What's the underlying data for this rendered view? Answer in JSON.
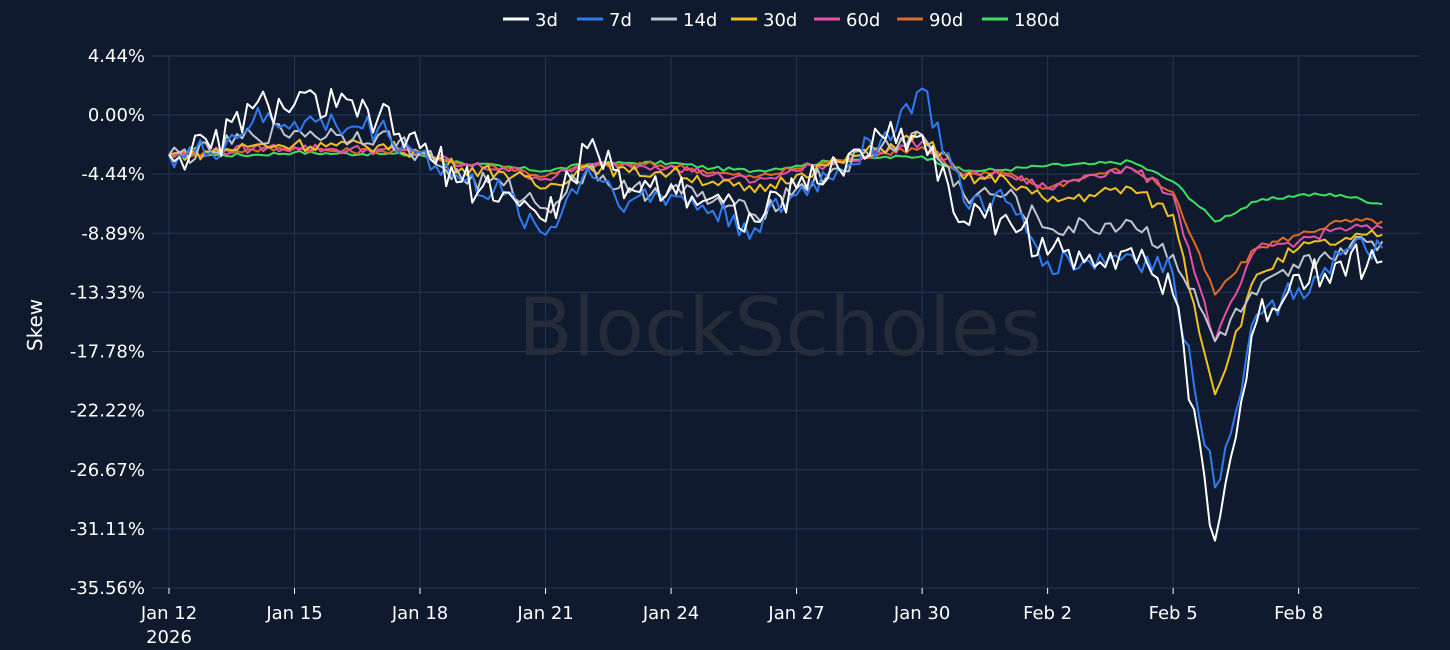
{
  "watermark": "BlockScholes",
  "chart_data": {
    "type": "line",
    "ylabel": "Skew",
    "xlabel": "",
    "legend_position": "top-center",
    "grid": true,
    "y_ticks": [
      "4.44%",
      "0.00%",
      "-4.44%",
      "-8.89%",
      "-13.33%",
      "-17.78%",
      "-22.22%",
      "-26.67%",
      "-31.11%",
      "-35.56%"
    ],
    "y_tick_values": [
      4.44,
      0.0,
      -4.44,
      -8.89,
      -13.33,
      -17.78,
      -22.22,
      -26.67,
      -31.11,
      -35.56
    ],
    "ylim": [
      -35.56,
      4.44
    ],
    "x_ticks": [
      "Jan 12",
      "Jan 15",
      "Jan 18",
      "Jan 21",
      "Jan 24",
      "Jan 27",
      "Jan 30",
      "Feb 2",
      "Feb 5",
      "Feb 8"
    ],
    "x_tick_values": [
      "2026-01-12",
      "2026-01-15",
      "2026-01-18",
      "2026-01-21",
      "2026-01-24",
      "2026-01-27",
      "2026-01-30",
      "2026-02-02",
      "2026-02-05",
      "2026-02-08"
    ],
    "x_year_label": "2026",
    "xlim": [
      "2026-01-12",
      "2026-02-10"
    ],
    "x": [
      "2026-01-12",
      "2026-01-13",
      "2026-01-14",
      "2026-01-15",
      "2026-01-16",
      "2026-01-17",
      "2026-01-18",
      "2026-01-19",
      "2026-01-20",
      "2026-01-21",
      "2026-01-22",
      "2026-01-23",
      "2026-01-24",
      "2026-01-25",
      "2026-01-26",
      "2026-01-27",
      "2026-01-28",
      "2026-01-29",
      "2026-01-30",
      "2026-01-31",
      "2026-02-01",
      "2026-02-02",
      "2026-02-03",
      "2026-02-04",
      "2026-02-05",
      "2026-02-06",
      "2026-02-07",
      "2026-02-08",
      "2026-02-09",
      "2026-02-10"
    ],
    "series": [
      {
        "name": "3d",
        "color": "#ffffff",
        "values": [
          -3.0,
          -2.5,
          0.5,
          0.8,
          0.6,
          -0.2,
          -2.5,
          -5.0,
          -5.8,
          -8.0,
          -2.5,
          -5.5,
          -5.2,
          -6.2,
          -8.0,
          -5.5,
          -4.0,
          -1.5,
          -1.5,
          -8.0,
          -7.5,
          -10.5,
          -10.5,
          -10.0,
          -13.5,
          -32.0,
          -15.5,
          -12.0,
          -11.0,
          -11.0
        ]
      },
      {
        "name": "7d",
        "color": "#2f7bf0",
        "values": [
          -3.0,
          -2.8,
          -0.5,
          -0.5,
          -0.8,
          -1.0,
          -2.8,
          -5.0,
          -6.0,
          -9.0,
          -4.0,
          -6.5,
          -6.0,
          -7.2,
          -8.5,
          -6.0,
          -4.0,
          -2.0,
          2.0,
          -6.5,
          -6.5,
          -11.0,
          -11.0,
          -10.5,
          -12.0,
          -28.0,
          -15.0,
          -13.0,
          -10.5,
          -10.0
        ]
      },
      {
        "name": "14d",
        "color": "#c0c4cc",
        "values": [
          -3.0,
          -2.8,
          -1.5,
          -1.2,
          -1.5,
          -1.5,
          -2.8,
          -4.8,
          -5.3,
          -7.0,
          -4.0,
          -5.8,
          -5.5,
          -6.5,
          -7.5,
          -5.5,
          -4.0,
          -2.5,
          -1.5,
          -6.0,
          -6.0,
          -8.5,
          -8.5,
          -8.0,
          -10.5,
          -17.0,
          -13.5,
          -11.5,
          -10.0,
          -9.5
        ]
      },
      {
        "name": "30d",
        "color": "#f0c020",
        "values": [
          -3.0,
          -2.8,
          -2.3,
          -2.2,
          -2.3,
          -2.3,
          -2.8,
          -4.0,
          -4.3,
          -5.5,
          -3.8,
          -4.3,
          -4.3,
          -5.0,
          -5.8,
          -4.5,
          -3.5,
          -2.5,
          -1.5,
          -4.8,
          -4.8,
          -6.5,
          -6.0,
          -5.5,
          -7.5,
          -21.0,
          -12.0,
          -10.0,
          -9.5,
          -9.0
        ]
      },
      {
        "name": "60d",
        "color": "#e84fa8",
        "values": [
          -3.0,
          -2.8,
          -2.5,
          -2.4,
          -2.6,
          -2.6,
          -2.8,
          -3.8,
          -4.0,
          -4.8,
          -3.8,
          -3.8,
          -3.8,
          -4.5,
          -5.0,
          -4.2,
          -3.5,
          -2.8,
          -2.0,
          -4.5,
          -4.5,
          -5.5,
          -4.5,
          -4.0,
          -6.0,
          -17.0,
          -10.0,
          -9.5,
          -8.5,
          -8.5
        ]
      },
      {
        "name": "90d",
        "color": "#e06a20",
        "values": [
          -3.0,
          -2.8,
          -2.6,
          -2.5,
          -2.7,
          -2.7,
          -2.8,
          -3.7,
          -3.9,
          -4.6,
          -3.8,
          -3.7,
          -3.8,
          -4.3,
          -4.7,
          -4.0,
          -3.4,
          -2.9,
          -2.4,
          -4.5,
          -4.4,
          -5.5,
          -4.5,
          -4.0,
          -5.8,
          -13.5,
          -10.0,
          -9.0,
          -8.0,
          -8.0
        ]
      },
      {
        "name": "180d",
        "color": "#3ee060",
        "values": [
          -3.0,
          -3.0,
          -3.0,
          -2.8,
          -2.9,
          -2.9,
          -3.0,
          -3.6,
          -3.9,
          -4.2,
          -3.7,
          -3.6,
          -3.6,
          -4.0,
          -4.2,
          -3.8,
          -3.4,
          -3.2,
          -3.1,
          -4.2,
          -4.1,
          -3.8,
          -3.7,
          -3.5,
          -5.0,
          -8.0,
          -6.5,
          -6.0,
          -6.0,
          -6.7
        ]
      }
    ]
  }
}
